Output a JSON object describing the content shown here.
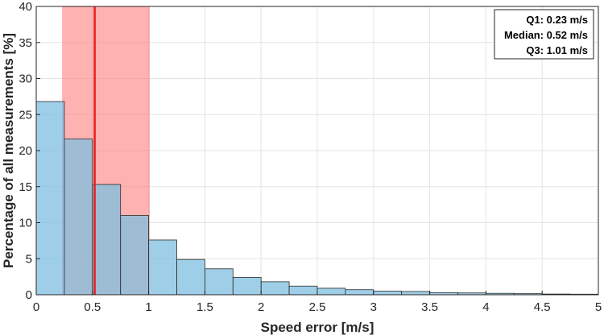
{
  "chart_data": {
    "type": "bar",
    "xlabel": "Speed error [m/s]",
    "ylabel": "Percentage of all measurements [%]",
    "xlim": [
      0,
      5
    ],
    "ylim": [
      0,
      40
    ],
    "xticks": [
      "0",
      "0.5",
      "1",
      "1.5",
      "2",
      "2.5",
      "3",
      "3.5",
      "4",
      "4.5",
      "5"
    ],
    "yticks": [
      "0",
      "5",
      "10",
      "15",
      "20",
      "25",
      "30",
      "35",
      "40"
    ],
    "grid": true,
    "bin_width": 0.25,
    "bins": [
      {
        "x0": 0.0,
        "x1": 0.25,
        "value": 26.8
      },
      {
        "x0": 0.25,
        "x1": 0.5,
        "value": 21.6
      },
      {
        "x0": 0.5,
        "x1": 0.75,
        "value": 15.3
      },
      {
        "x0": 0.75,
        "x1": 1.0,
        "value": 11.0
      },
      {
        "x0": 1.0,
        "x1": 1.25,
        "value": 7.6
      },
      {
        "x0": 1.25,
        "x1": 1.5,
        "value": 4.9
      },
      {
        "x0": 1.5,
        "x1": 1.75,
        "value": 3.6
      },
      {
        "x0": 1.75,
        "x1": 2.0,
        "value": 2.4
      },
      {
        "x0": 2.0,
        "x1": 2.25,
        "value": 1.8
      },
      {
        "x0": 2.25,
        "x1": 2.5,
        "value": 1.2
      },
      {
        "x0": 2.5,
        "x1": 2.75,
        "value": 0.9
      },
      {
        "x0": 2.75,
        "x1": 3.0,
        "value": 0.7
      },
      {
        "x0": 3.0,
        "x1": 3.25,
        "value": 0.5
      },
      {
        "x0": 3.25,
        "x1": 3.5,
        "value": 0.45
      },
      {
        "x0": 3.5,
        "x1": 3.75,
        "value": 0.3
      },
      {
        "x0": 3.75,
        "x1": 4.0,
        "value": 0.25
      },
      {
        "x0": 4.0,
        "x1": 4.25,
        "value": 0.2
      },
      {
        "x0": 4.25,
        "x1": 4.5,
        "value": 0.15
      },
      {
        "x0": 4.5,
        "x1": 4.75,
        "value": 0.1
      },
      {
        "x0": 4.75,
        "x1": 5.0,
        "value": 0.08
      }
    ],
    "stats": {
      "q1": 0.23,
      "median": 0.52,
      "q3": 1.01,
      "q1_text": "Q1: 0.23 m/s",
      "median_text": "Median: 0.52 m/s",
      "q3_text": "Q3: 1.01 m/s"
    },
    "legend_placement": "top-right",
    "colors": {
      "bar_fill": "#7fbfe0",
      "bar_stroke": "#2b2b2b",
      "iqr_band": "#ff7f7f",
      "median_line": "#e8201f",
      "grid": "#e3e3e3"
    }
  }
}
